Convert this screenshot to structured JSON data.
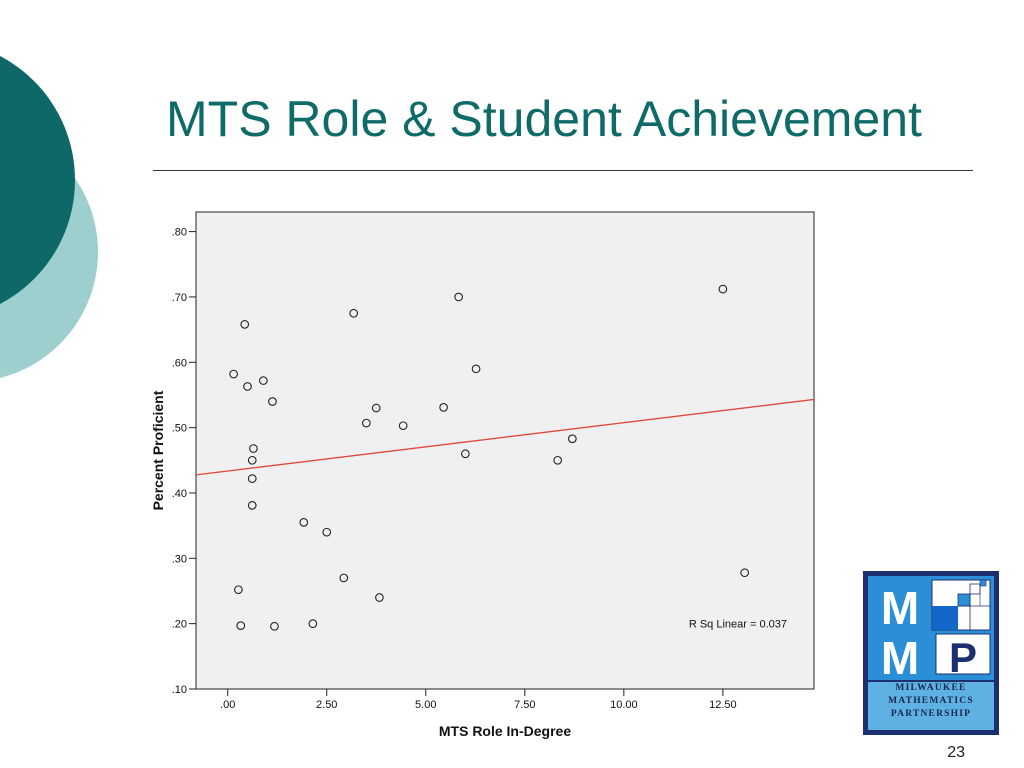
{
  "slide": {
    "title": "MTS Role & Student Achievement",
    "page_number": "23"
  },
  "theme": {
    "title_color": "#0f6b68",
    "circle_dark": "#0d6867",
    "circle_light": "#9ccfcd",
    "plot_background": "#f0f0f0",
    "fit_line_color": "#e04a3c"
  },
  "logo": {
    "letters": [
      "M",
      "M",
      "P"
    ],
    "lines": [
      "MILWAUKEE",
      "MATHEMATICS",
      "PARTNERSHIP"
    ],
    "frame_color": "#1c2f6e",
    "background_color": "#2a8fd6"
  },
  "chart_data": {
    "type": "scatter",
    "title": "",
    "xlabel": "MTS Role In-Degree",
    "ylabel": "Percent Proficient",
    "xlim": [
      -0.8,
      14.8
    ],
    "ylim": [
      0.1,
      0.83
    ],
    "xticks": [
      0,
      2.5,
      5,
      7.5,
      10,
      12.5
    ],
    "xtick_labels": [
      ".00",
      "2.50",
      "5.00",
      "7.50",
      "10.00",
      "12.50"
    ],
    "yticks": [
      0.1,
      0.2,
      0.3,
      0.4,
      0.5,
      0.6,
      0.7,
      0.8
    ],
    "ytick_labels": [
      ".10",
      ".20",
      ".30",
      ".40",
      ".50",
      ".60",
      ".70",
      ".80"
    ],
    "grid": false,
    "points": [
      {
        "x": 0.15,
        "y": 0.582
      },
      {
        "x": 0.43,
        "y": 0.658
      },
      {
        "x": 0.5,
        "y": 0.563
      },
      {
        "x": 0.9,
        "y": 0.572
      },
      {
        "x": 1.13,
        "y": 0.54
      },
      {
        "x": 0.65,
        "y": 0.468
      },
      {
        "x": 0.62,
        "y": 0.45
      },
      {
        "x": 0.62,
        "y": 0.422
      },
      {
        "x": 0.62,
        "y": 0.381
      },
      {
        "x": 0.27,
        "y": 0.252
      },
      {
        "x": 0.33,
        "y": 0.197
      },
      {
        "x": 1.18,
        "y": 0.196
      },
      {
        "x": 1.92,
        "y": 0.355
      },
      {
        "x": 2.5,
        "y": 0.34
      },
      {
        "x": 2.15,
        "y": 0.2
      },
      {
        "x": 2.93,
        "y": 0.27
      },
      {
        "x": 3.18,
        "y": 0.675
      },
      {
        "x": 3.5,
        "y": 0.507
      },
      {
        "x": 3.75,
        "y": 0.53
      },
      {
        "x": 3.83,
        "y": 0.24
      },
      {
        "x": 4.43,
        "y": 0.503
      },
      {
        "x": 5.45,
        "y": 0.531
      },
      {
        "x": 5.83,
        "y": 0.7
      },
      {
        "x": 6.0,
        "y": 0.46
      },
      {
        "x": 6.27,
        "y": 0.59
      },
      {
        "x": 8.33,
        "y": 0.45
      },
      {
        "x": 8.7,
        "y": 0.483
      },
      {
        "x": 12.5,
        "y": 0.712
      },
      {
        "x": 13.05,
        "y": 0.278
      }
    ],
    "fit_line": {
      "label": "R Sq Linear = 0.037",
      "intercept": 0.4336,
      "slope": 0.0074
    }
  }
}
